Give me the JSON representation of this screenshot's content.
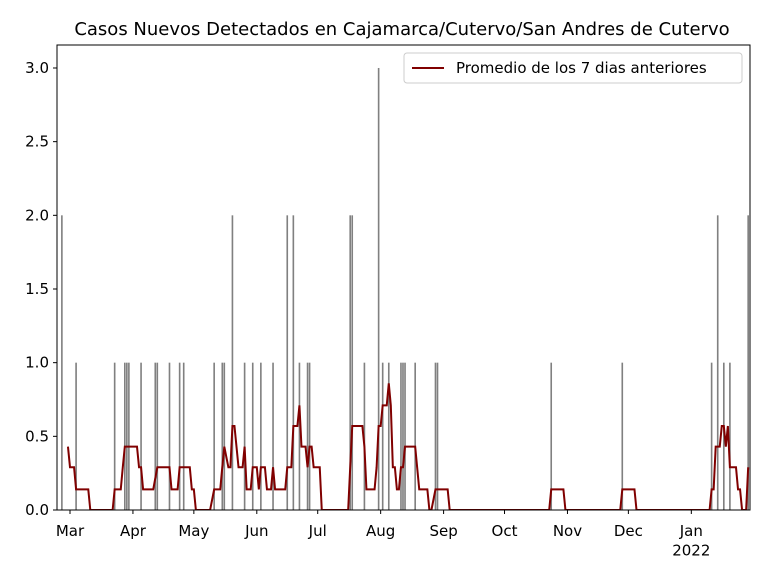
{
  "chart_data": {
    "type": "combo",
    "title": "Casos Nuevos Detectados en Cajamarca/Cutervo/San Andres de Cutervo",
    "bars": {
      "color": "#808080",
      "x": [
        -4,
        3,
        22,
        27,
        28,
        29,
        35,
        42,
        43,
        49,
        54,
        56,
        71,
        75,
        76,
        80,
        86,
        90,
        94,
        100,
        107,
        110,
        113,
        117,
        118,
        138,
        139,
        145,
        152,
        154,
        157,
        163,
        164,
        165,
        170,
        180,
        181,
        237,
        272,
        316,
        319,
        322,
        325,
        334
      ],
      "values": [
        2,
        1,
        1,
        1,
        1,
        1,
        1,
        1,
        1,
        1,
        1,
        1,
        1,
        1,
        1,
        2,
        1,
        1,
        1,
        1,
        2,
        2,
        1,
        1,
        1,
        2,
        2,
        1,
        3,
        1,
        1,
        1,
        1,
        1,
        1,
        1,
        1,
        1,
        1,
        1,
        2,
        1,
        1,
        2
      ]
    },
    "series": [
      {
        "name": "Promedio de los 7 dias anteriores",
        "color": "#800000",
        "x": [
          -1,
          0,
          2,
          3,
          9,
          10,
          21,
          22,
          25,
          26,
          27,
          33,
          34,
          35,
          36,
          41,
          43,
          49,
          50,
          53,
          54,
          59,
          60,
          61,
          62,
          69,
          71,
          74,
          75,
          76,
          78,
          79,
          80,
          81,
          83,
          85,
          86,
          87,
          89,
          90,
          92,
          93,
          94,
          96,
          97,
          99,
          100,
          101,
          106,
          107,
          109,
          110,
          112,
          113,
          114,
          116,
          117,
          118,
          119,
          120,
          123,
          124,
          137,
          138,
          139,
          144,
          145,
          146,
          150,
          151,
          152,
          153,
          154,
          156,
          157,
          158,
          159,
          160,
          161,
          162,
          163,
          164,
          165,
          170,
          172,
          176,
          177,
          178,
          180,
          186,
          187,
          236,
          237,
          243,
          244,
          271,
          272,
          278,
          279,
          315,
          316,
          317,
          318,
          320,
          321,
          322,
          323,
          324,
          325,
          328,
          329,
          330,
          331,
          333,
          334
        ],
        "values": [
          0.43,
          0.29,
          0.29,
          0.14,
          0.14,
          0,
          0,
          0.14,
          0.14,
          0.29,
          0.43,
          0.43,
          0.29,
          0.29,
          0.14,
          0.14,
          0.29,
          0.29,
          0.14,
          0.14,
          0.29,
          0.29,
          0.14,
          0.14,
          0,
          0,
          0.14,
          0.14,
          0.29,
          0.43,
          0.29,
          0.29,
          0.57,
          0.57,
          0.29,
          0.29,
          0.43,
          0.14,
          0.14,
          0.29,
          0.29,
          0.14,
          0.29,
          0.29,
          0.14,
          0.14,
          0.29,
          0.14,
          0.14,
          0.29,
          0.29,
          0.57,
          0.57,
          0.71,
          0.43,
          0.43,
          0.29,
          0.43,
          0.43,
          0.29,
          0.29,
          0,
          0,
          0.29,
          0.57,
          0.57,
          0.43,
          0.14,
          0.14,
          0.29,
          0.57,
          0.57,
          0.71,
          0.71,
          0.86,
          0.71,
          0.29,
          0.29,
          0.14,
          0.14,
          0.29,
          0.29,
          0.43,
          0.43,
          0.14,
          0.14,
          0,
          0,
          0.14,
          0.14,
          0,
          0,
          0.14,
          0.14,
          0,
          0,
          0.14,
          0.14,
          0,
          0,
          0.14,
          0.14,
          0.43,
          0.43,
          0.57,
          0.57,
          0.43,
          0.57,
          0.29,
          0.29,
          0.14,
          0.14,
          0,
          0,
          0.29
        ]
      }
    ],
    "xlim": [
      -6.4,
      334.9
    ],
    "xticks": [
      {
        "value": 0,
        "label": "Mar"
      },
      {
        "value": 31,
        "label": "Apr"
      },
      {
        "value": 61,
        "label": "May"
      },
      {
        "value": 92,
        "label": "Jun"
      },
      {
        "value": 122,
        "label": "Jul"
      },
      {
        "value": 153,
        "label": "Aug"
      },
      {
        "value": 184,
        "label": "Sep"
      },
      {
        "value": 214,
        "label": "Oct"
      },
      {
        "value": 245,
        "label": "Nov"
      },
      {
        "value": 275,
        "label": "Dec"
      },
      {
        "value": 306,
        "label": "Jan\n2022"
      }
    ],
    "ylim": [
      0,
      3.156
    ],
    "yticks": [
      {
        "value": 0,
        "label": "0.0"
      },
      {
        "value": 0.5,
        "label": "0.5"
      },
      {
        "value": 1,
        "label": "1.0"
      },
      {
        "value": 1.5,
        "label": "1.5"
      },
      {
        "value": 2,
        "label": "2.0"
      },
      {
        "value": 2.5,
        "label": "2.5"
      },
      {
        "value": 3,
        "label": "3.0"
      }
    ],
    "legend": "upper right"
  }
}
